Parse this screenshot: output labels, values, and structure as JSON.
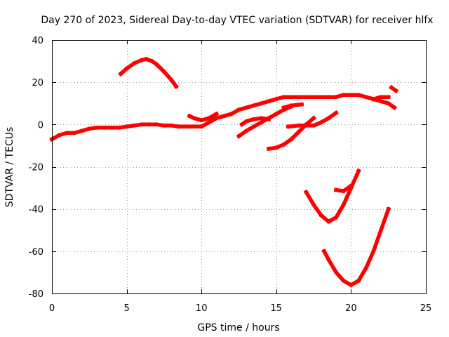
{
  "chart_data": {
    "type": "scatter",
    "title": "Day 270 of 2023, Sidereal Day-to-day VTEC variation (SDTVAR) for receiver hlfx",
    "xlabel": "GPS time / hours",
    "ylabel": "SDTVAR / TECUs",
    "xlim": [
      0,
      25
    ],
    "ylim": [
      -80,
      40
    ],
    "grid": true,
    "x_ticks": [
      0,
      5,
      10,
      15,
      20,
      25
    ],
    "y_ticks": [
      -80,
      -60,
      -40,
      -20,
      0,
      20,
      40
    ],
    "x_tick_labels": [
      "0",
      "5",
      "10",
      "15",
      "20",
      "25"
    ],
    "y_tick_labels": [
      "-80",
      "-60",
      "-40",
      "-20",
      "0",
      "20",
      "40"
    ],
    "series_color": "#ff0000",
    "series": [
      {
        "name": "main-trace",
        "x": [
          0,
          0.5,
          1,
          1.5,
          2,
          2.5,
          3,
          3.5,
          4,
          4.5,
          5,
          5.5,
          6,
          6.5,
          7,
          7.5,
          8,
          8.5,
          9,
          9.5,
          10,
          10.5,
          11,
          11.5,
          12,
          12.5,
          13,
          13.5,
          14,
          14.5,
          15,
          15.5,
          16,
          16.5,
          17,
          17.5,
          18,
          18.5,
          19,
          19.5,
          20,
          20.5,
          21,
          21.5,
          22,
          22.5,
          22.9
        ],
        "y": [
          -7,
          -5,
          -4,
          -4,
          -3,
          -2,
          -1.5,
          -1.5,
          -1.5,
          -1.5,
          -1,
          -0.5,
          0,
          0,
          0,
          -0.5,
          -0.5,
          -1,
          -1,
          -1,
          -1,
          1,
          3,
          4,
          5,
          7,
          8,
          9,
          10,
          11,
          12,
          13,
          13,
          13,
          13,
          13,
          13,
          13,
          13,
          14,
          14,
          14,
          13,
          12,
          11,
          10,
          8
        ]
      },
      {
        "name": "arc-5-8h",
        "x": [
          4.6,
          5,
          5.5,
          6,
          6.3,
          6.7,
          7,
          7.5,
          8,
          8.3
        ],
        "y": [
          24,
          26.5,
          29,
          30.5,
          31,
          30,
          28.5,
          25,
          21,
          18
        ]
      },
      {
        "name": "dip-9-11h",
        "x": [
          9.2,
          9.5,
          10,
          10.5,
          11
        ],
        "y": [
          4,
          3,
          2,
          3,
          5
        ]
      },
      {
        "name": "seg-12-16h",
        "x": [
          12.5,
          13,
          13.5,
          14,
          14.5,
          15,
          15.5,
          16
        ],
        "y": [
          -5.5,
          -3,
          -1,
          1,
          3,
          5,
          7,
          8.5
        ]
      },
      {
        "name": "seg-12.7-14.5h",
        "x": [
          12.7,
          13,
          13.5,
          14,
          14.5
        ],
        "y": [
          0,
          1.5,
          2.5,
          3,
          2.5
        ]
      },
      {
        "name": "seg-14.5-17.5h",
        "x": [
          14.5,
          15,
          15.5,
          16,
          16.5,
          17,
          17.5
        ],
        "y": [
          -11.5,
          -11,
          -9.5,
          -7,
          -3.5,
          0,
          3
        ]
      },
      {
        "name": "seg-15.5-16.7h",
        "x": [
          15.5,
          16,
          16.7
        ],
        "y": [
          8,
          9,
          9.5
        ]
      },
      {
        "name": "seg-15.8-19h",
        "x": [
          15.8,
          16.5,
          17,
          17.5,
          18,
          18.5,
          19
        ],
        "y": [
          -1,
          -0.5,
          -0.5,
          -0.5,
          1,
          3,
          5.5
        ]
      },
      {
        "name": "seg-21.5-22.5h",
        "x": [
          21.5,
          22,
          22.5
        ],
        "y": [
          12,
          13,
          13
        ]
      },
      {
        "name": "seg-22.7-23h",
        "x": [
          22.7,
          23
        ],
        "y": [
          17.5,
          16
        ]
      },
      {
        "name": "u-curve-17-20h",
        "x": [
          17,
          17.5,
          18,
          18.5,
          19,
          19.5,
          20,
          20.5
        ],
        "y": [
          -32,
          -38,
          -43,
          -46,
          -44,
          -38,
          -30,
          -22
        ]
      },
      {
        "name": "seg-19-20h",
        "x": [
          19,
          19.5,
          20
        ],
        "y": [
          -31,
          -31.5,
          -29
        ]
      },
      {
        "name": "u-curve-18-23h",
        "x": [
          18.2,
          18.5,
          19,
          19.5,
          20,
          20.5,
          21,
          21.5,
          22,
          22.5
        ],
        "y": [
          -60,
          -64,
          -70,
          -74,
          -76,
          -74,
          -68,
          -60,
          -50,
          -40
        ]
      }
    ]
  }
}
